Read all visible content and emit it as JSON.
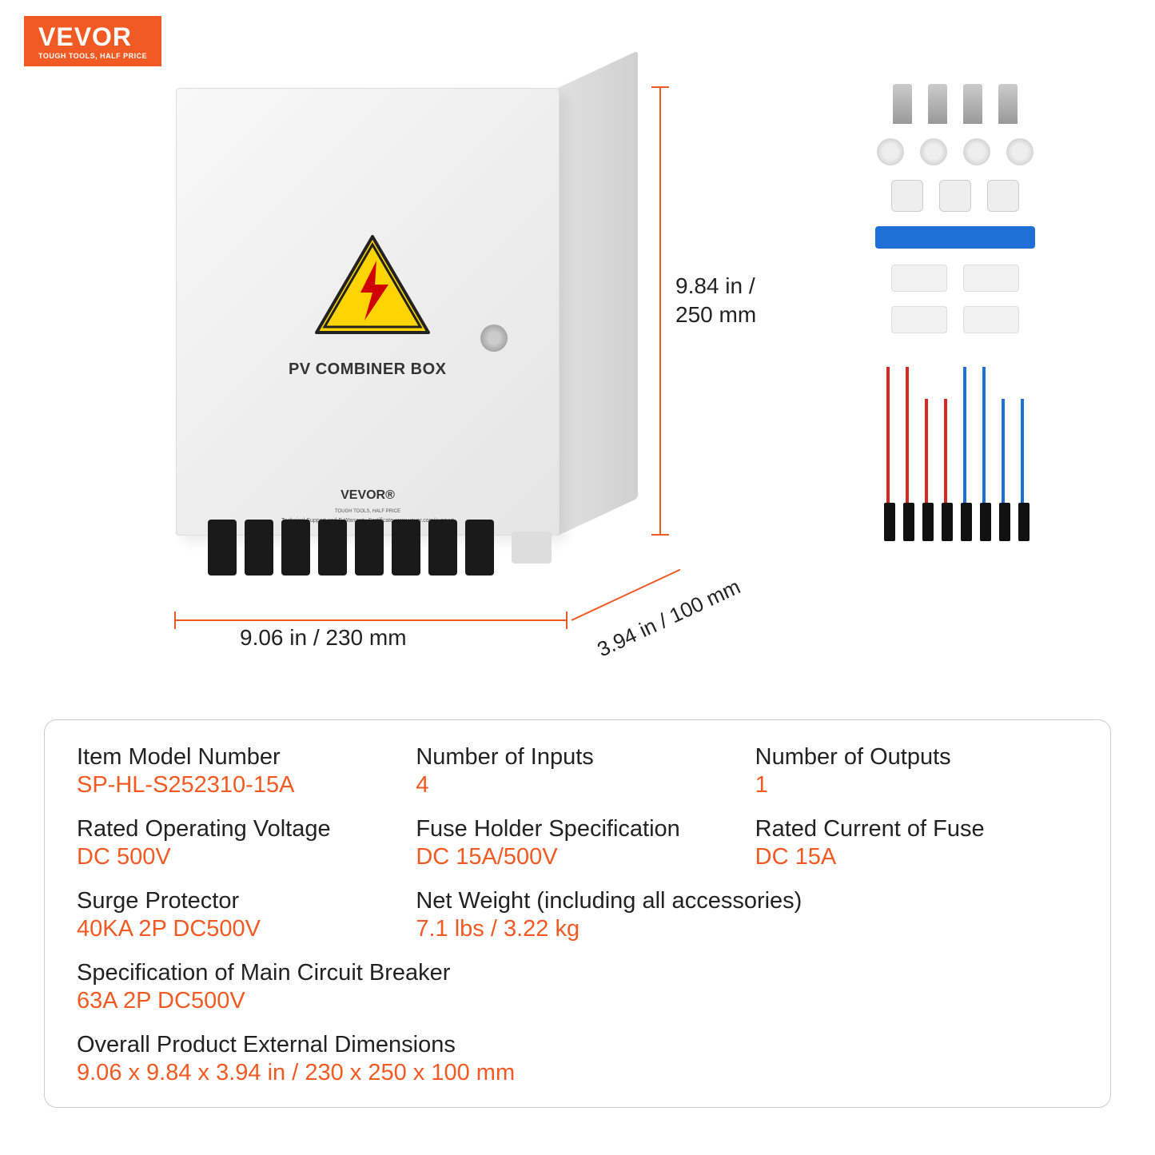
{
  "brand": {
    "name": "VEVOR",
    "tagline": "TOUGH TOOLS, HALF PRICE",
    "badge_bg": "#f15a22",
    "badge_fg": "#ffffff"
  },
  "product": {
    "box_label": "PV COMBINER BOX",
    "box_brand": "VEVOR®",
    "box_brand_sub": "TOUGH TOOLS, HALF PRICE",
    "box_support": "Technical Support and E-Warranty Certificate www.vevor.com/support",
    "box_color": "#f0f0f0",
    "warning": {
      "triangle_fill": "#ffd400",
      "triangle_stroke": "#d00000",
      "bolt_color": "#d00000"
    },
    "connector_count": 8,
    "connector_color": "#1a1a1a"
  },
  "dimensions": {
    "height": "9.84 in /\n250 mm",
    "width": "9.06 in / 230 mm",
    "depth": "3.94 in / 100 mm",
    "line_color": "#f15a22"
  },
  "accessories": {
    "screws": 4,
    "nuts": 4,
    "glands": 3,
    "wrench_color": "#1e6fd6",
    "clips": 4,
    "cables": [
      {
        "color": "red",
        "len": 170
      },
      {
        "color": "red",
        "len": 170
      },
      {
        "color": "red",
        "len": 130
      },
      {
        "color": "red",
        "len": 130
      },
      {
        "color": "blue",
        "len": 170
      },
      {
        "color": "blue",
        "len": 170
      },
      {
        "color": "blue",
        "len": 130
      },
      {
        "color": "blue",
        "len": 130
      }
    ]
  },
  "specs": {
    "model": {
      "label": "Item Model Number",
      "value": "SP-HL-S252310-15A"
    },
    "inputs": {
      "label": "Number of Inputs",
      "value": "4"
    },
    "outputs": {
      "label": "Number of Outputs",
      "value": "1"
    },
    "voltage": {
      "label": "Rated Operating Voltage",
      "value": "DC 500V"
    },
    "fuse_holder": {
      "label": "Fuse Holder Specification",
      "value": "DC 15A/500V"
    },
    "fuse_current": {
      "label": "Rated Current of Fuse",
      "value": "DC 15A"
    },
    "surge": {
      "label": "Surge Protector",
      "value": "40KA 2P DC500V"
    },
    "weight": {
      "label": "Net Weight (including all accessories)",
      "value": "7.1 lbs / 3.22 kg"
    },
    "breaker": {
      "label": "Specification of Main Circuit Breaker",
      "value": "63A 2P DC500V"
    },
    "overall": {
      "label": "Overall Product External Dimensions",
      "value": "9.06 x 9.84 x 3.94 in / 230 x 250 x 100 mm"
    },
    "label_color": "#222222",
    "value_color": "#f15a22",
    "border_color": "#cccccc"
  }
}
